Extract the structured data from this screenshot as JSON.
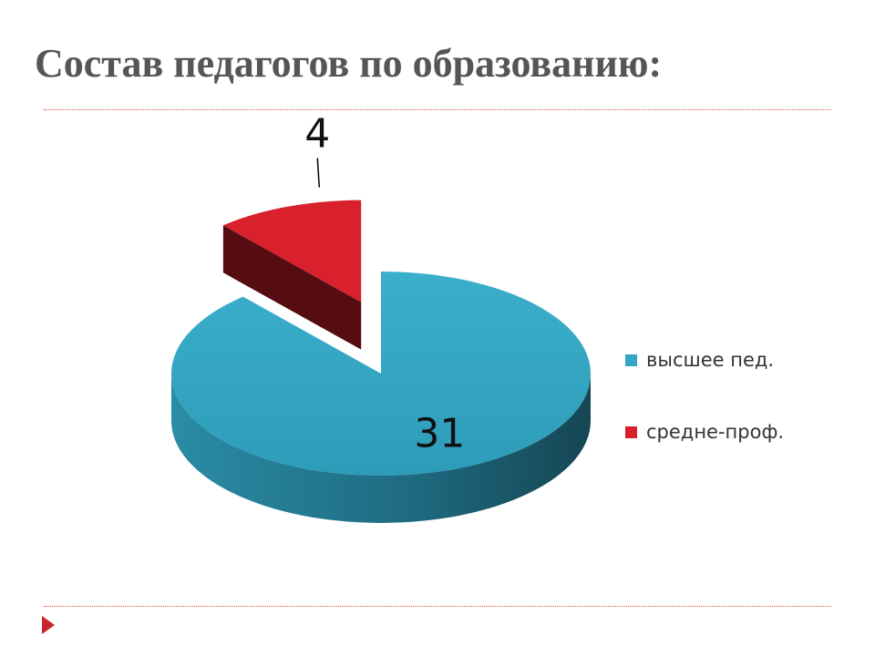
{
  "slide": {
    "title": "Состав педагогов по образованию:"
  },
  "chart_data": {
    "type": "pie",
    "title": "",
    "legend_position": "right",
    "slices": [
      {
        "name": "высшее пед.",
        "value": 31,
        "color": "#35A6C3",
        "label": "31"
      },
      {
        "name": "средне-проф.",
        "value": 4,
        "color": "#D8212C",
        "label": "4"
      }
    ]
  },
  "icons": {
    "bullet": "arrow-right-icon"
  }
}
